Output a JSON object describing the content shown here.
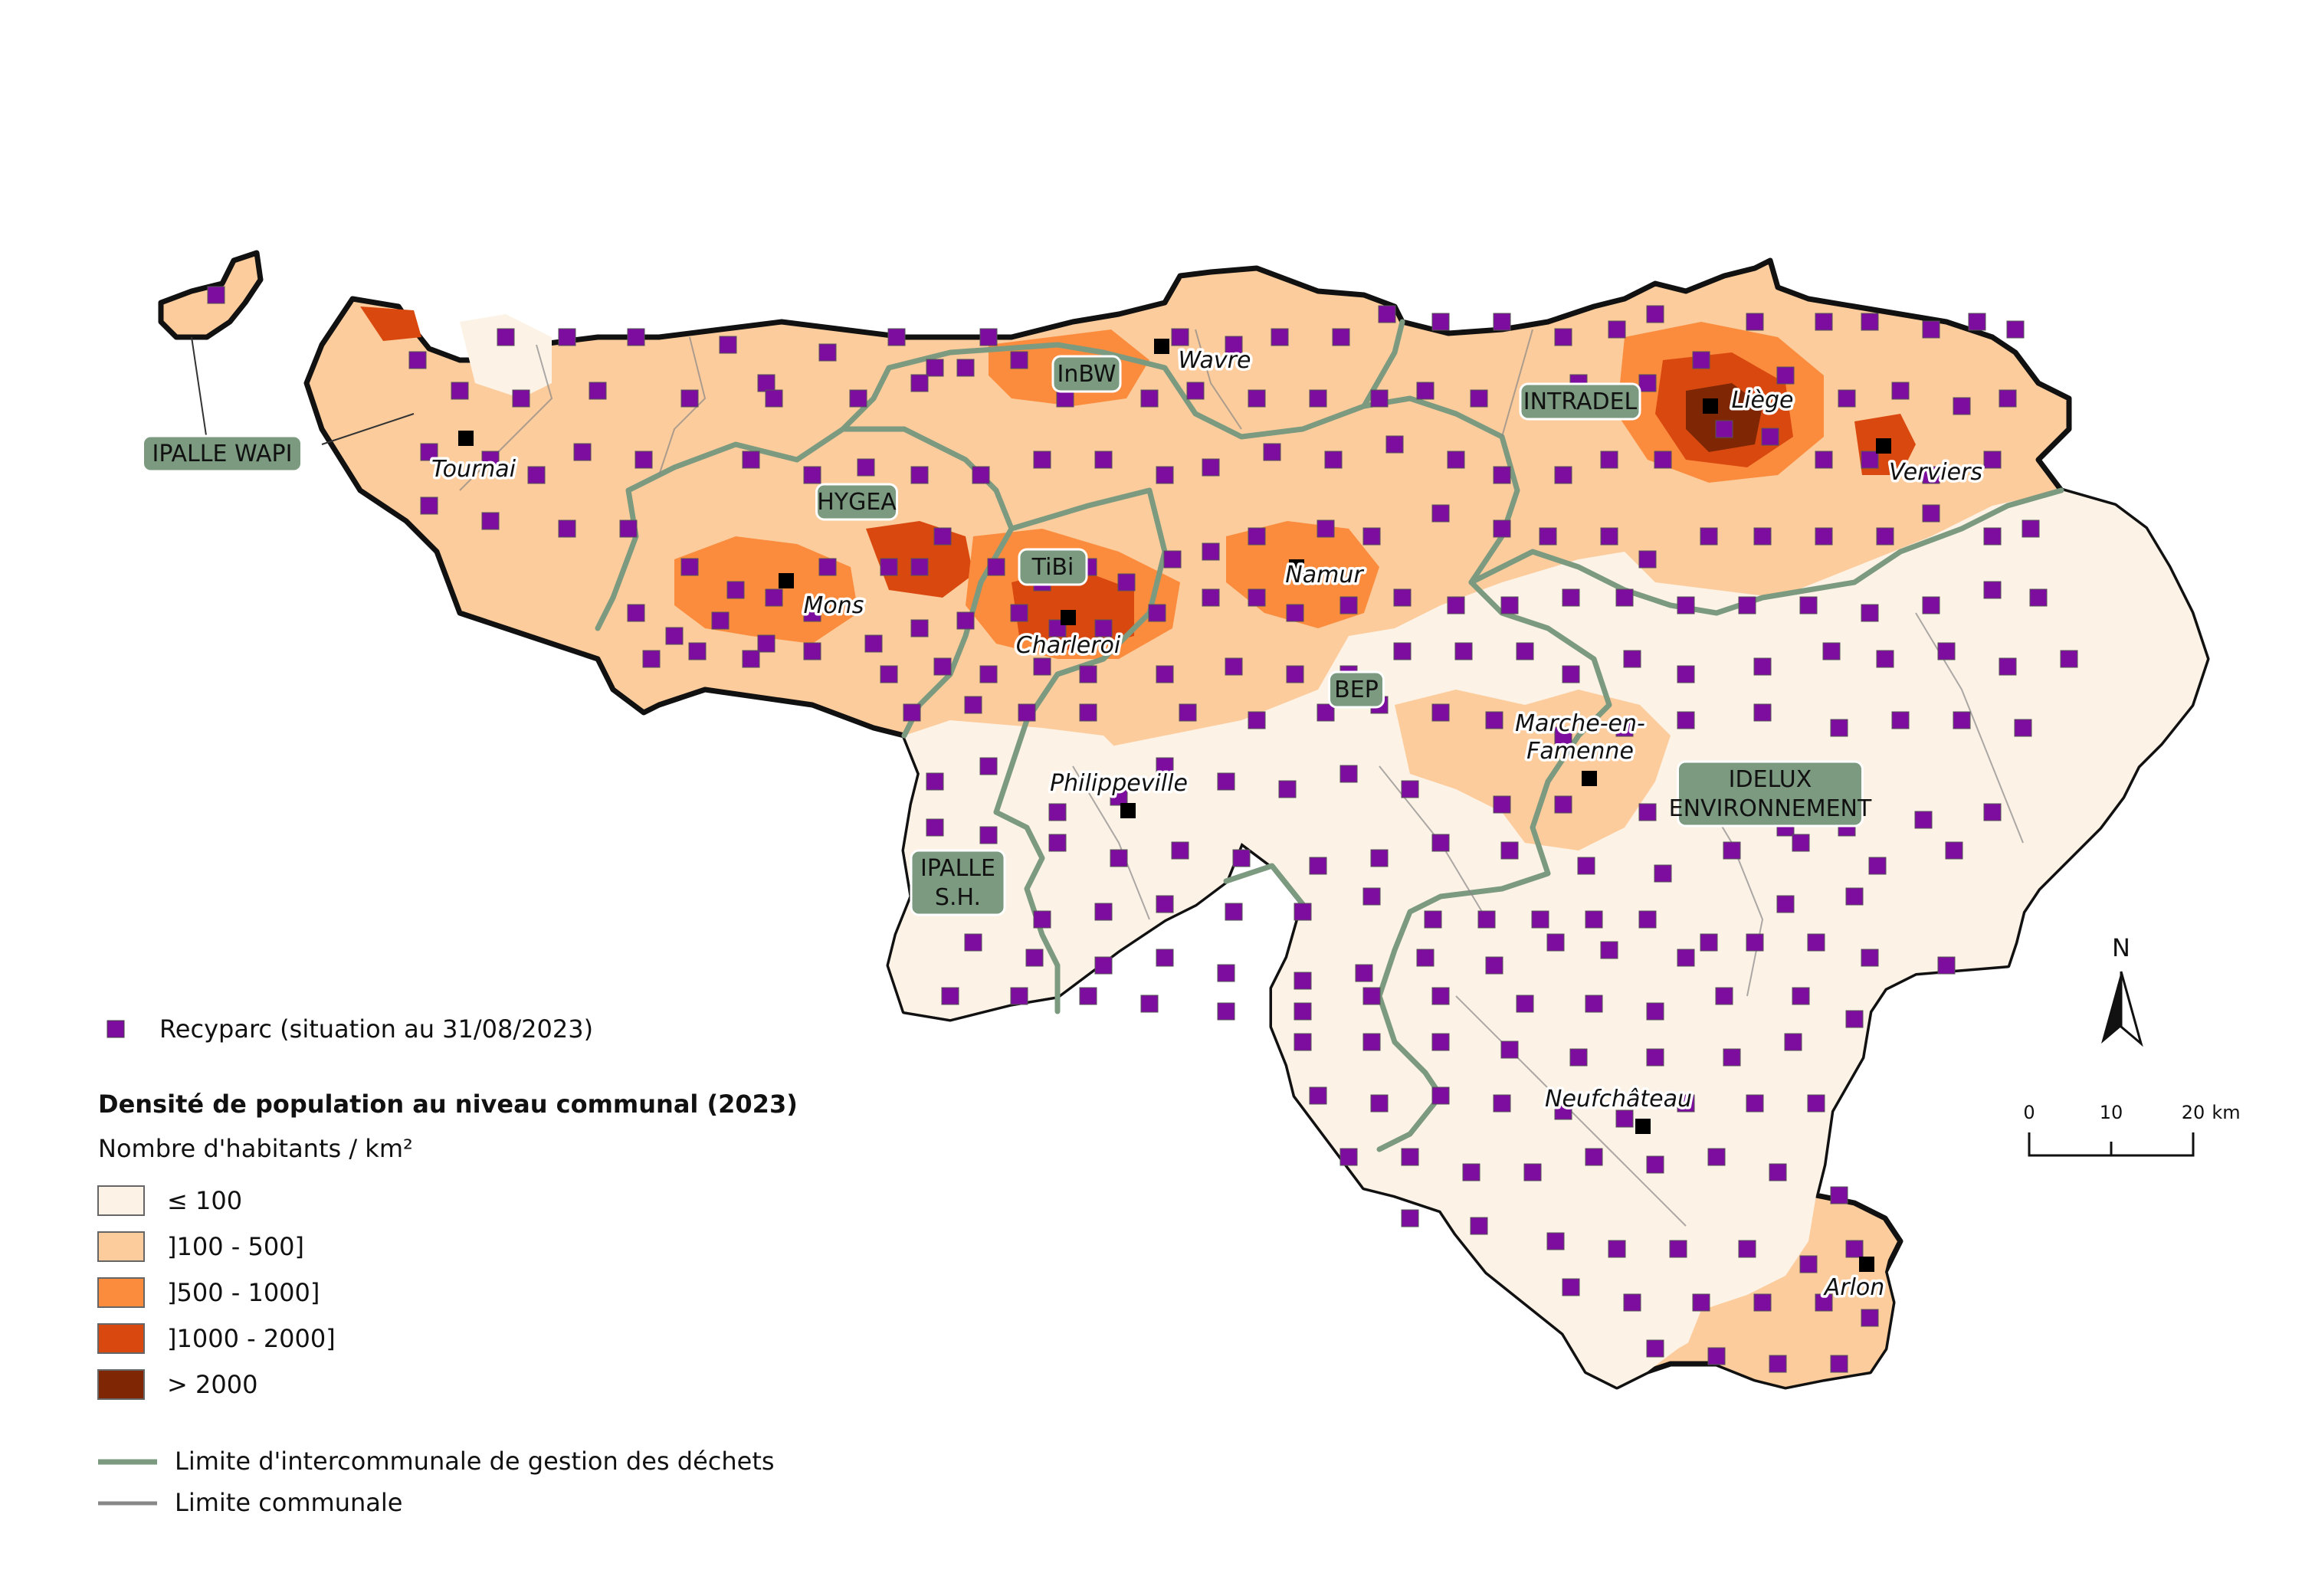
{
  "legend": {
    "recyparc_label": "Recyparc (situation au 31/08/2023)",
    "density_title": "Densité de population au niveau communal (2023)",
    "density_subtitle": "Nombre d'habitants / km²",
    "classes": [
      {
        "label": "≤ 100",
        "color": "#fdf2e6"
      },
      {
        "label": "]100 - 500]",
        "color": "#fdcc9c"
      },
      {
        "label": "]500 - 1000]",
        "color": "#fb8c3e"
      },
      {
        "label": "]1000 - 2000]",
        "color": "#d9480f"
      },
      {
        "label": "> 2000",
        "color": "#7f2704"
      }
    ],
    "intercommunal_limit_label": "Limite d'intercommunale de gestion des déchets",
    "communal_limit_label": "Limite communale"
  },
  "cities": [
    "Tournai",
    "Mons",
    "Charleroi",
    "Wavre",
    "Namur",
    "Liège",
    "Verviers",
    "Philippeville",
    "Marche-en-Famenne",
    "Neufchâteau",
    "Arlon"
  ],
  "intercommunales": [
    "IPALLE WAPI",
    "HYGEA",
    "TiBi",
    "InBW",
    "INTRADEL",
    "BEP",
    "IDELUX ENVIRONNEMENT",
    "IPALLE S.H."
  ],
  "north_arrow": "N",
  "scale_bar": {
    "ticks": [
      "0",
      "10",
      "20"
    ],
    "unit": "km"
  },
  "colors": {
    "recyparc": "#7d0d9e",
    "city_marker": "#000000",
    "intercommunal_line": "#7b9a80",
    "border": "#111111"
  }
}
